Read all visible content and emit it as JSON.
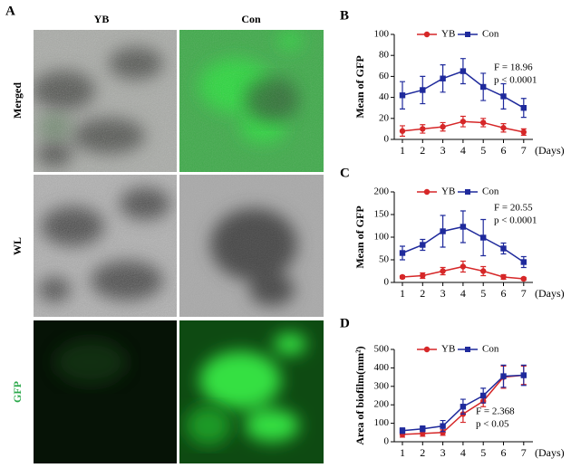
{
  "panel_a": {
    "panel_label": "A",
    "columns": [
      "YB",
      "Con"
    ],
    "rows": [
      "Merged",
      "WL",
      "GFP"
    ]
  },
  "chart_data": [
    {
      "type": "line",
      "panel_label": "B",
      "y_label": "Mean of GFP",
      "x_label": "(Days)",
      "categories": [
        "1",
        "2",
        "3",
        "4",
        "5",
        "6",
        "7"
      ],
      "ylim": [
        0,
        100
      ],
      "yticks": [
        0,
        20,
        40,
        60,
        80,
        100
      ],
      "legend": "top",
      "annotations": [
        "F = 18.96",
        "p < 0.0001"
      ],
      "series": [
        {
          "name": "YB",
          "color": "#d62728",
          "marker": "circle",
          "values": [
            8,
            10,
            12,
            17,
            16,
            11,
            7
          ],
          "errors": [
            5,
            4,
            4,
            5,
            4,
            4,
            3
          ]
        },
        {
          "name": "Con",
          "color": "#1f2a9c",
          "marker": "square",
          "values": [
            42,
            47,
            58,
            65,
            50,
            41,
            30
          ],
          "errors": [
            13,
            13,
            13,
            12,
            13,
            12,
            9
          ]
        }
      ]
    },
    {
      "type": "line",
      "panel_label": "C",
      "y_label": "Mean of GFP",
      "x_label": "(Days)",
      "categories": [
        "1",
        "2",
        "3",
        "4",
        "5",
        "6",
        "7"
      ],
      "ylim": [
        0,
        200
      ],
      "yticks": [
        0,
        50,
        100,
        150,
        200
      ],
      "legend": "top",
      "annotations": [
        "F = 20.55",
        "p < 0.0001"
      ],
      "series": [
        {
          "name": "YB",
          "color": "#d62728",
          "marker": "circle",
          "values": [
            12,
            15,
            25,
            35,
            25,
            12,
            8
          ],
          "errors": [
            3,
            6,
            8,
            12,
            10,
            5,
            3
          ]
        },
        {
          "name": "Con",
          "color": "#1f2a9c",
          "marker": "square",
          "values": [
            65,
            83,
            113,
            123,
            99,
            75,
            45
          ],
          "errors": [
            15,
            12,
            35,
            35,
            40,
            12,
            12
          ]
        }
      ]
    },
    {
      "type": "line",
      "panel_label": "D",
      "y_label": "Area of biofilm(mm²)",
      "x_label": "(Days)",
      "categories": [
        "1",
        "2",
        "3",
        "4",
        "5",
        "6",
        "7"
      ],
      "ylim": [
        0,
        500
      ],
      "yticks": [
        0,
        100,
        200,
        300,
        400,
        500
      ],
      "legend": "top",
      "annotations": [
        "F = 2.368",
        "p < 0.05"
      ],
      "series": [
        {
          "name": "YB",
          "color": "#d62728",
          "marker": "circle",
          "values": [
            40,
            45,
            50,
            150,
            220,
            350,
            360
          ],
          "errors": [
            15,
            15,
            15,
            45,
            30,
            60,
            50
          ]
        },
        {
          "name": "Con",
          "color": "#1f2a9c",
          "marker": "square",
          "values": [
            60,
            70,
            85,
            190,
            250,
            355,
            360
          ],
          "errors": [
            15,
            15,
            30,
            40,
            40,
            60,
            55
          ]
        }
      ]
    }
  ]
}
